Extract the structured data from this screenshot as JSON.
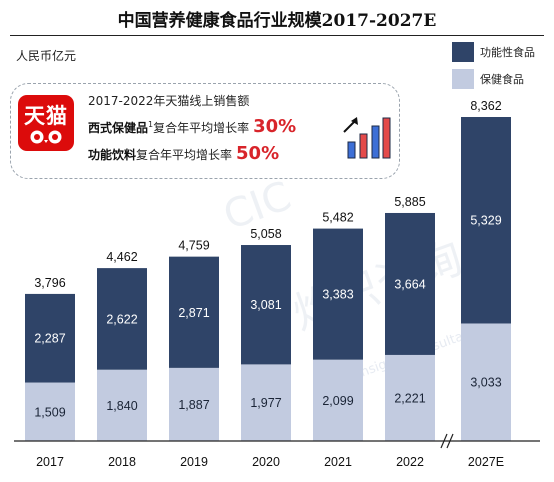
{
  "title": "中国营养健康食品行业规模2017-2027E",
  "unit_label": "人民币亿元",
  "legend": [
    {
      "name": "功能性食品",
      "color": "#2f4468"
    },
    {
      "name": "保健食品",
      "color": "#c2cbe0"
    }
  ],
  "callout": {
    "line1": "2017-2022年天猫线上销售额",
    "line2_highlight": "西式保健品",
    "line2_sup": "1",
    "line2_text": "复合年平均增长率",
    "line2_pct": "30%",
    "line3_highlight": "功能饮料",
    "line3_text": "复合年平均增长率",
    "line3_pct": "50%",
    "tmall_logo_text": "天猫",
    "tmall_icon": "tmall-cat-icon",
    "growth_icon": "growth-bars-arrow-icon"
  },
  "chart_data": {
    "type": "bar",
    "stacked": true,
    "categories": [
      "2017",
      "2018",
      "2019",
      "2020",
      "2021",
      "2022",
      "2027E"
    ],
    "series": [
      {
        "name": "保健食品",
        "color": "#c2cbe0",
        "values": [
          1509,
          1840,
          1887,
          1977,
          2099,
          2221,
          3033
        ],
        "labels": [
          "1,509",
          "1,840",
          "1,887",
          "1,977",
          "2,099",
          "2,221",
          "3,033"
        ]
      },
      {
        "name": "功能性食品",
        "color": "#2f4468",
        "values": [
          2287,
          2622,
          2871,
          3081,
          3383,
          3664,
          5329
        ],
        "labels": [
          "2,287",
          "2,622",
          "2,871",
          "3,081",
          "3,383",
          "3,664",
          "5,329"
        ]
      }
    ],
    "totals": [
      3796,
      4462,
      4759,
      5058,
      5482,
      5885,
      8362
    ],
    "total_labels": [
      "3,796",
      "4,462",
      "4,759",
      "5,058",
      "5,482",
      "5,885",
      "8,362"
    ],
    "axis_break_before": "2027E",
    "ylim": [
      0,
      8362
    ],
    "xlabel": "",
    "ylabel": "",
    "grid": false,
    "legend_position": "top-right"
  },
  "watermark": {
    "text": "灼识咨询",
    "subtext": "China Insights Consultancy",
    "logo": "CIC"
  }
}
